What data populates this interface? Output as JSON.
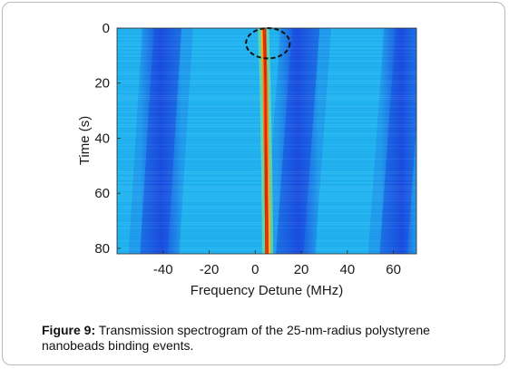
{
  "caption": {
    "label": "Figure 9:",
    "text": "Transmission spectrogram of the 25-nm-radius polystyrene nanobeads binding events."
  },
  "chart_data": {
    "type": "heatmap",
    "title": "",
    "xlabel": "Frequency Detune (MHz)",
    "ylabel": "Time (s)",
    "xlim": [
      -60,
      70
    ],
    "ylim": [
      82,
      0
    ],
    "xticks": [
      -40,
      -20,
      0,
      20,
      40,
      60
    ],
    "yticks": [
      0,
      20,
      40,
      60,
      80
    ],
    "grid": false,
    "legend": "none",
    "colormap": "parula",
    "colors": {
      "background_dark": "#1a4fe0",
      "background_light": "#22b4f0",
      "resonance_peak": "#d42a0a",
      "annotation": "#111111"
    },
    "dark_bands": [
      {
        "center_top": -38,
        "center_bottom": -44
      },
      {
        "center_top": 22,
        "center_bottom": 15
      },
      {
        "center_top": 67,
        "center_bottom": 60
      }
    ],
    "resonance_line": [
      {
        "time": 0,
        "detune": 3.6
      },
      {
        "time": 10,
        "detune": 3.9
      },
      {
        "time": 20,
        "detune": 4.3
      },
      {
        "time": 30,
        "detune": 4.5
      },
      {
        "time": 40,
        "detune": 4.7
      },
      {
        "time": 50,
        "detune": 5.0
      },
      {
        "time": 60,
        "detune": 5.1
      },
      {
        "time": 70,
        "detune": 5.3
      },
      {
        "time": 82,
        "detune": 5.4
      }
    ],
    "annotations": [
      {
        "shape": "dashed-ellipse",
        "detune": 5.5,
        "time": 5.5,
        "detune_halfwidth": 9.5,
        "time_halfwidth": 5.5
      }
    ]
  }
}
